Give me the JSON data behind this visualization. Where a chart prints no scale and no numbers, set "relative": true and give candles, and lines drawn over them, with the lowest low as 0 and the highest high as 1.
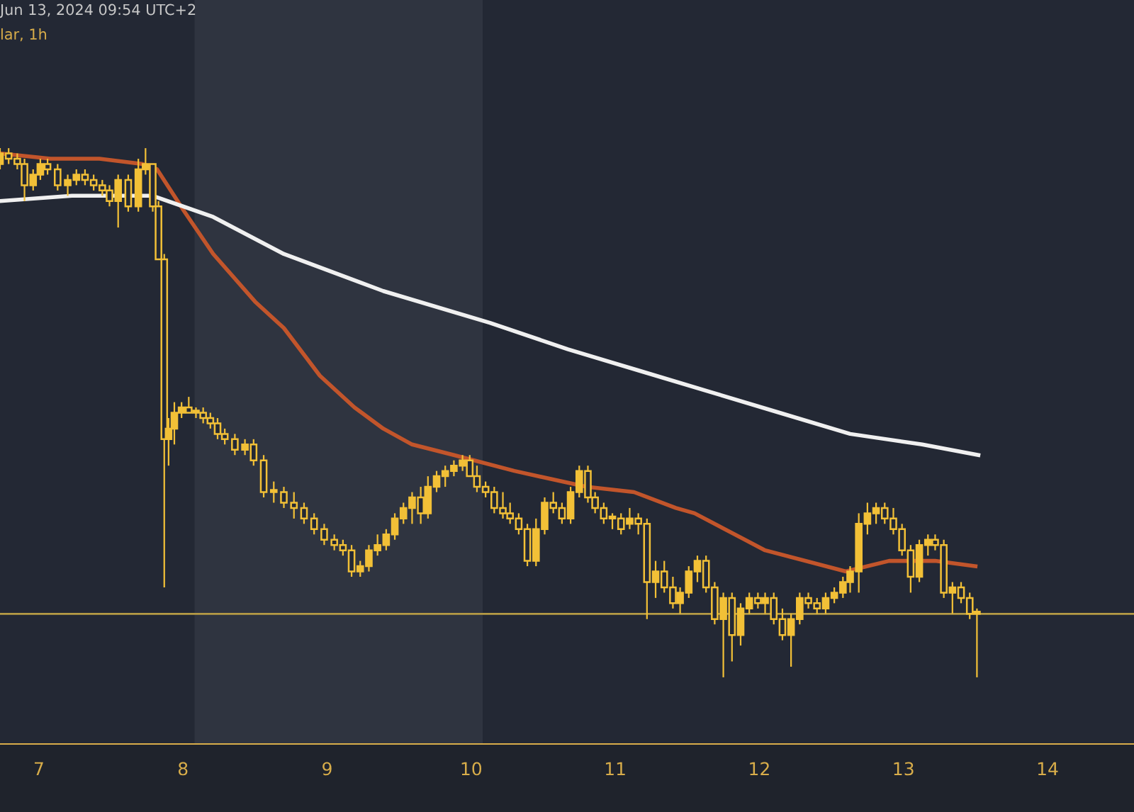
{
  "chart_data": {
    "type": "candlestick",
    "relative": true,
    "color": "#f2c037",
    "annotations": [
      "Jun 13, 2024 09:54 UTC+2",
      "lar, 1h"
    ],
    "xlim": [
      6.73,
      14.6
    ],
    "xticks": [
      7,
      8,
      9,
      10,
      11,
      12,
      13,
      14
    ],
    "grid": false,
    "bands": [
      {
        "axis": "x",
        "from": 8.08,
        "to": 10.08,
        "label": null,
        "color": "#2f3440"
      }
    ],
    "ref_lines": [
      {
        "axis": "y",
        "value": 0.12,
        "label": null,
        "color": "#b59a45"
      }
    ],
    "x": [
      6.73,
      6.79,
      6.85,
      6.9,
      6.96,
      7.01,
      7.06,
      7.13,
      7.2,
      7.26,
      7.32,
      7.38,
      7.44,
      7.49,
      7.55,
      7.62,
      7.69,
      7.74,
      7.79,
      7.83,
      7.87,
      7.9,
      7.94,
      7.99,
      8.04,
      8.09,
      8.14,
      8.19,
      8.24,
      8.29,
      8.36,
      8.43,
      8.49,
      8.56,
      8.63,
      8.7,
      8.77,
      8.84,
      8.91,
      8.98,
      9.05,
      9.11,
      9.17,
      9.23,
      9.29,
      9.35,
      9.41,
      9.47,
      9.53,
      9.59,
      9.65,
      9.7,
      9.76,
      9.82,
      9.88,
      9.94,
      9.99,
      10.04,
      10.1,
      10.16,
      10.22,
      10.27,
      10.33,
      10.39,
      10.45,
      10.51,
      10.57,
      10.63,
      10.69,
      10.75,
      10.81,
      10.86,
      10.92,
      10.98,
      11.04,
      11.1,
      11.16,
      11.22,
      11.28,
      11.34,
      11.4,
      11.45,
      11.51,
      11.57,
      11.63,
      11.69,
      11.75,
      11.81,
      11.87,
      11.93,
      11.99,
      12.04,
      12.1,
      12.16,
      12.22,
      12.28,
      12.34,
      12.4,
      12.46,
      12.52,
      12.58,
      12.63,
      12.69,
      12.75,
      12.81,
      12.87,
      12.93,
      12.99,
      13.05,
      13.11,
      13.17,
      13.22,
      13.28,
      13.34,
      13.4,
      13.46,
      13.51
    ],
    "ohlc": [
      [
        0.97,
        1.0,
        0.96,
        0.99
      ],
      [
        0.99,
        1.0,
        0.97,
        0.98
      ],
      [
        0.98,
        0.99,
        0.96,
        0.97
      ],
      [
        0.97,
        0.98,
        0.9,
        0.93
      ],
      [
        0.93,
        0.96,
        0.92,
        0.95
      ],
      [
        0.95,
        0.98,
        0.94,
        0.97
      ],
      [
        0.97,
        0.98,
        0.95,
        0.96
      ],
      [
        0.96,
        0.97,
        0.92,
        0.93
      ],
      [
        0.93,
        0.95,
        0.91,
        0.94
      ],
      [
        0.94,
        0.96,
        0.93,
        0.95
      ],
      [
        0.95,
        0.96,
        0.93,
        0.94
      ],
      [
        0.94,
        0.95,
        0.92,
        0.93
      ],
      [
        0.93,
        0.94,
        0.91,
        0.92
      ],
      [
        0.92,
        0.93,
        0.89,
        0.9
      ],
      [
        0.9,
        0.95,
        0.85,
        0.94
      ],
      [
        0.94,
        0.95,
        0.88,
        0.89
      ],
      [
        0.89,
        0.98,
        0.88,
        0.96
      ],
      [
        0.96,
        1.0,
        0.95,
        0.97
      ],
      [
        0.97,
        0.97,
        0.88,
        0.89
      ],
      [
        0.89,
        0.9,
        0.79,
        0.79
      ],
      [
        0.79,
        0.8,
        0.17,
        0.45
      ],
      [
        0.45,
        0.49,
        0.4,
        0.47
      ],
      [
        0.47,
        0.52,
        0.44,
        0.5
      ],
      [
        0.5,
        0.52,
        0.49,
        0.51
      ],
      [
        0.51,
        0.53,
        0.5,
        0.5
      ],
      [
        0.5,
        0.51,
        0.49,
        0.5
      ],
      [
        0.5,
        0.51,
        0.48,
        0.49
      ],
      [
        0.49,
        0.5,
        0.47,
        0.48
      ],
      [
        0.48,
        0.49,
        0.45,
        0.46
      ],
      [
        0.46,
        0.47,
        0.44,
        0.45
      ],
      [
        0.45,
        0.46,
        0.42,
        0.43
      ],
      [
        0.43,
        0.45,
        0.42,
        0.44
      ],
      [
        0.44,
        0.45,
        0.4,
        0.41
      ],
      [
        0.41,
        0.42,
        0.34,
        0.35
      ],
      [
        0.35,
        0.37,
        0.33,
        0.35
      ],
      [
        0.35,
        0.36,
        0.32,
        0.33
      ],
      [
        0.33,
        0.35,
        0.3,
        0.32
      ],
      [
        0.32,
        0.33,
        0.29,
        0.3
      ],
      [
        0.3,
        0.31,
        0.27,
        0.28
      ],
      [
        0.28,
        0.29,
        0.25,
        0.26
      ],
      [
        0.26,
        0.27,
        0.24,
        0.25
      ],
      [
        0.25,
        0.26,
        0.23,
        0.24
      ],
      [
        0.24,
        0.25,
        0.19,
        0.2
      ],
      [
        0.2,
        0.22,
        0.19,
        0.21
      ],
      [
        0.21,
        0.25,
        0.2,
        0.24
      ],
      [
        0.24,
        0.27,
        0.23,
        0.25
      ],
      [
        0.25,
        0.28,
        0.24,
        0.27
      ],
      [
        0.27,
        0.31,
        0.26,
        0.3
      ],
      [
        0.3,
        0.33,
        0.29,
        0.32
      ],
      [
        0.32,
        0.35,
        0.29,
        0.34
      ],
      [
        0.34,
        0.36,
        0.29,
        0.31
      ],
      [
        0.31,
        0.38,
        0.3,
        0.36
      ],
      [
        0.36,
        0.39,
        0.35,
        0.38
      ],
      [
        0.38,
        0.4,
        0.36,
        0.39
      ],
      [
        0.39,
        0.41,
        0.38,
        0.4
      ],
      [
        0.4,
        0.42,
        0.39,
        0.41
      ],
      [
        0.41,
        0.42,
        0.38,
        0.38
      ],
      [
        0.38,
        0.4,
        0.35,
        0.36
      ],
      [
        0.36,
        0.37,
        0.34,
        0.35
      ],
      [
        0.35,
        0.36,
        0.31,
        0.32
      ],
      [
        0.32,
        0.35,
        0.3,
        0.31
      ],
      [
        0.31,
        0.33,
        0.29,
        0.3
      ],
      [
        0.3,
        0.31,
        0.27,
        0.28
      ],
      [
        0.28,
        0.29,
        0.21,
        0.22
      ],
      [
        0.22,
        0.3,
        0.21,
        0.28
      ],
      [
        0.28,
        0.34,
        0.27,
        0.33
      ],
      [
        0.33,
        0.35,
        0.31,
        0.32
      ],
      [
        0.32,
        0.33,
        0.29,
        0.3
      ],
      [
        0.3,
        0.36,
        0.29,
        0.35
      ],
      [
        0.35,
        0.4,
        0.34,
        0.39
      ],
      [
        0.39,
        0.4,
        0.33,
        0.34
      ],
      [
        0.34,
        0.35,
        0.31,
        0.32
      ],
      [
        0.32,
        0.33,
        0.29,
        0.3
      ],
      [
        0.3,
        0.31,
        0.28,
        0.3
      ],
      [
        0.3,
        0.31,
        0.27,
        0.28
      ],
      [
        0.29,
        0.32,
        0.28,
        0.3
      ],
      [
        0.3,
        0.31,
        0.27,
        0.29
      ],
      [
        0.29,
        0.3,
        0.11,
        0.18
      ],
      [
        0.18,
        0.22,
        0.15,
        0.2
      ],
      [
        0.2,
        0.22,
        0.16,
        0.17
      ],
      [
        0.17,
        0.19,
        0.13,
        0.14
      ],
      [
        0.14,
        0.17,
        0.12,
        0.16
      ],
      [
        0.16,
        0.21,
        0.15,
        0.2
      ],
      [
        0.2,
        0.23,
        0.18,
        0.22
      ],
      [
        0.22,
        0.23,
        0.16,
        0.17
      ],
      [
        0.17,
        0.18,
        0.1,
        0.11
      ],
      [
        0.11,
        0.16,
        0.0,
        0.15
      ],
      [
        0.15,
        0.16,
        0.03,
        0.08
      ],
      [
        0.08,
        0.14,
        0.06,
        0.13
      ],
      [
        0.13,
        0.16,
        0.12,
        0.15
      ],
      [
        0.15,
        0.16,
        0.13,
        0.14
      ],
      [
        0.14,
        0.16,
        0.12,
        0.15
      ],
      [
        0.15,
        0.16,
        0.1,
        0.11
      ],
      [
        0.11,
        0.13,
        0.07,
        0.08
      ],
      [
        0.08,
        0.12,
        0.02,
        0.11
      ],
      [
        0.11,
        0.16,
        0.1,
        0.15
      ],
      [
        0.15,
        0.16,
        0.13,
        0.14
      ],
      [
        0.14,
        0.15,
        0.12,
        0.13
      ],
      [
        0.13,
        0.16,
        0.12,
        0.15
      ],
      [
        0.15,
        0.17,
        0.14,
        0.16
      ],
      [
        0.16,
        0.19,
        0.15,
        0.18
      ],
      [
        0.18,
        0.21,
        0.16,
        0.2
      ],
      [
        0.2,
        0.31,
        0.16,
        0.29
      ],
      [
        0.29,
        0.33,
        0.27,
        0.31
      ],
      [
        0.31,
        0.33,
        0.29,
        0.32
      ],
      [
        0.32,
        0.33,
        0.29,
        0.3
      ],
      [
        0.3,
        0.32,
        0.27,
        0.28
      ],
      [
        0.28,
        0.29,
        0.23,
        0.24
      ],
      [
        0.24,
        0.25,
        0.16,
        0.19
      ],
      [
        0.19,
        0.26,
        0.18,
        0.25
      ],
      [
        0.25,
        0.27,
        0.23,
        0.26
      ],
      [
        0.26,
        0.27,
        0.24,
        0.25
      ],
      [
        0.25,
        0.26,
        0.15,
        0.16
      ],
      [
        0.16,
        0.18,
        0.12,
        0.17
      ],
      [
        0.17,
        0.18,
        0.14,
        0.15
      ],
      [
        0.15,
        0.16,
        0.11,
        0.12
      ],
      [
        0.12,
        0.13,
        0.0,
        0.12
      ]
    ],
    "series": [
      {
        "type": "line",
        "color": "#c2552b",
        "x": [
          6.73,
          7.08,
          7.42,
          7.72,
          7.82,
          8.01,
          8.21,
          8.5,
          8.7,
          8.95,
          9.19,
          9.39,
          9.59,
          9.88,
          10.3,
          10.8,
          11.13,
          11.42,
          11.55,
          12.04,
          12.6,
          12.9,
          13.22,
          13.5
        ],
        "values": [
          0.99,
          0.98,
          0.98,
          0.97,
          0.96,
          0.88,
          0.8,
          0.71,
          0.66,
          0.57,
          0.51,
          0.47,
          0.44,
          0.42,
          0.39,
          0.36,
          0.35,
          0.32,
          0.31,
          0.24,
          0.2,
          0.22,
          0.22,
          0.21
        ]
      },
      {
        "type": "line",
        "color": "#f0f0f0",
        "x": [
          6.73,
          7.23,
          7.79,
          8.21,
          8.7,
          9.39,
          10.13,
          10.67,
          11.16,
          11.65,
          12.14,
          12.63,
          13.13,
          13.52
        ],
        "values": [
          0.9,
          0.91,
          0.91,
          0.87,
          0.8,
          0.73,
          0.67,
          0.62,
          0.58,
          0.54,
          0.5,
          0.46,
          0.44,
          0.42
        ]
      }
    ]
  }
}
